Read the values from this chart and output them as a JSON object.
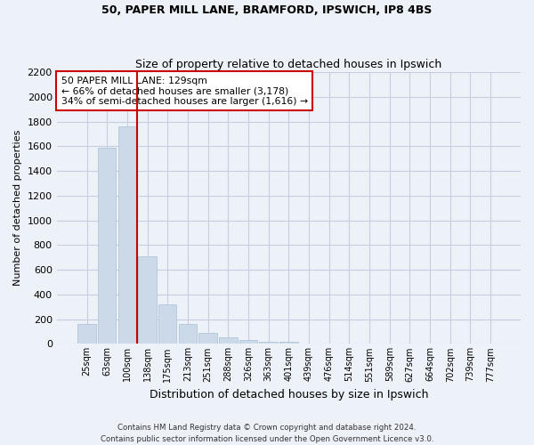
{
  "title_line1": "50, PAPER MILL LANE, BRAMFORD, IPSWICH, IP8 4BS",
  "title_line2": "Size of property relative to detached houses in Ipswich",
  "xlabel": "Distribution of detached houses by size in Ipswich",
  "ylabel": "Number of detached properties",
  "footer_line1": "Contains HM Land Registry data © Crown copyright and database right 2024.",
  "footer_line2": "Contains public sector information licensed under the Open Government Licence v3.0.",
  "categories": [
    "25sqm",
    "63sqm",
    "100sqm",
    "138sqm",
    "175sqm",
    "213sqm",
    "251sqm",
    "288sqm",
    "326sqm",
    "363sqm",
    "401sqm",
    "439sqm",
    "476sqm",
    "514sqm",
    "551sqm",
    "589sqm",
    "627sqm",
    "664sqm",
    "702sqm",
    "739sqm",
    "777sqm"
  ],
  "values": [
    160,
    1590,
    1760,
    710,
    320,
    160,
    90,
    55,
    30,
    20,
    20,
    0,
    0,
    0,
    0,
    0,
    0,
    0,
    0,
    0,
    0
  ],
  "bar_color": "#ccd9e8",
  "bar_edge_color": "#aac0d8",
  "grid_color": "#c5cfe0",
  "background_color": "#edf1f8",
  "red_line_color": "#cc0000",
  "annotation_text": "50 PAPER MILL LANE: 129sqm\n← 66% of detached houses are smaller (3,178)\n34% of semi-detached houses are larger (1,616) →",
  "annotation_box_color": "#ffffff",
  "annotation_box_edge": "#cc0000",
  "ylim": [
    0,
    2200
  ],
  "yticks": [
    0,
    200,
    400,
    600,
    800,
    1000,
    1200,
    1400,
    1600,
    1800,
    2000,
    2200
  ]
}
